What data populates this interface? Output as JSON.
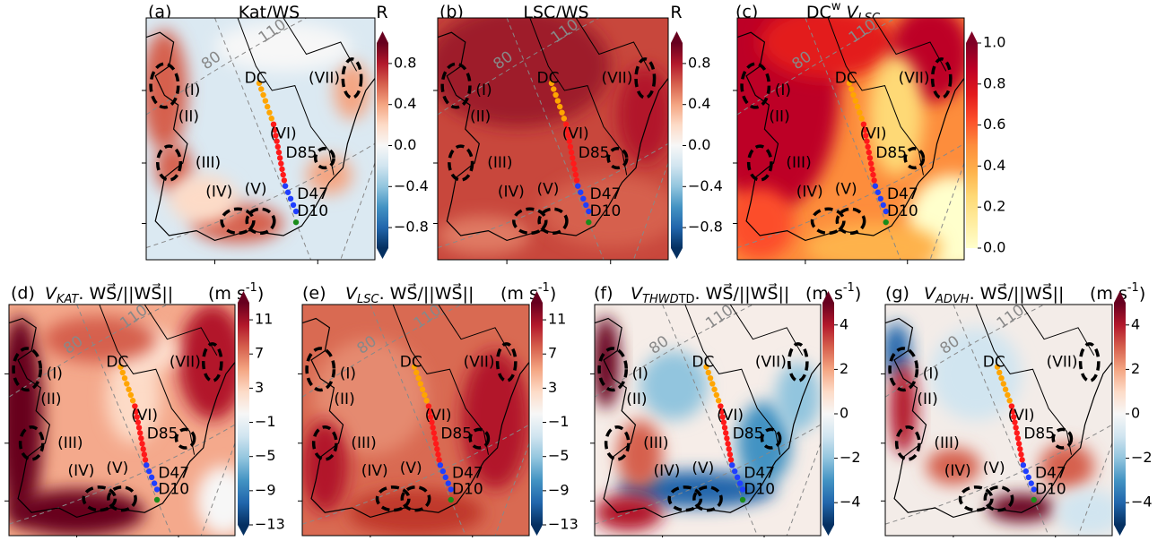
{
  "panels": [
    {
      "label": "(a)",
      "title": [
        {
          "text": "Kat/WS"
        }
      ],
      "unit": [
        {
          "text": "R"
        }
      ],
      "extend": "both",
      "lim": [
        -1,
        1
      ],
      "colors": [
        "#053061",
        "#2166ac",
        "#4393c3",
        "#92c5de",
        "#d1e5f0",
        "#f7f7f7",
        "#fddbc7",
        "#f4a582",
        "#d6604d",
        "#b2182b",
        "#67001f"
      ],
      "ticks": [
        {
          "value": -0.8,
          "label": "−0.8"
        },
        {
          "value": -0.4,
          "label": "−0.4"
        },
        {
          "value": 0,
          "label": "0.0"
        },
        0.4,
        0.8
      ]
    },
    {
      "label": "(b)",
      "title": [
        {
          "text": "LSC/WS"
        }
      ],
      "unit": [
        {
          "text": "R"
        }
      ],
      "extend": "both",
      "lim": [
        -1,
        1
      ],
      "colors": [
        "#053061",
        "#2166ac",
        "#4393c3",
        "#92c5de",
        "#d1e5f0",
        "#f7f7f7",
        "#fddbc7",
        "#f4a582",
        "#d6604d",
        "#b2182b",
        "#67001f"
      ],
      "ticks": [
        {
          "value": -0.8,
          "label": "−0.8"
        },
        {
          "value": -0.4,
          "label": "−0.4"
        },
        {
          "value": 0,
          "label": "0.0"
        },
        0.4,
        0.8
      ]
    },
    {
      "label": "(c)",
      "title": [
        {
          "text": "DC"
        },
        {
          "text": "w",
          "sup": true
        },
        {
          "text": " V",
          "italic": true
        },
        {
          "text": "LSC",
          "sub": true,
          "italic": true
        }
      ],
      "extend": "max",
      "lim": [
        0,
        1
      ],
      "colors": [
        "#ffffcc",
        "#ffeda0",
        "#fed976",
        "#feb24c",
        "#fd8d3c",
        "#fc4e2a",
        "#e31a1c",
        "#bd0026",
        "#800026"
      ],
      "ticks": [
        {
          "value": 0,
          "label": "0.0"
        },
        0.2,
        0.4,
        0.6,
        0.8,
        {
          "value": 1,
          "label": "1.0"
        }
      ]
    },
    {
      "label": "(d)",
      "title": [
        {
          "text": "V",
          "italic": true
        },
        {
          "text": "KAT",
          "sub": true,
          "italic": true
        },
        {
          "text": ". WS⃗/||WS⃗||"
        }
      ],
      "unit": [
        {
          "text": "(m s"
        },
        {
          "text": "-1",
          "sup": true
        },
        {
          "text": ")"
        }
      ],
      "extend": "both",
      "lim": [
        -13,
        13
      ],
      "colors": [
        "#053061",
        "#2166ac",
        "#4393c3",
        "#92c5de",
        "#d1e5f0",
        "#f7f7f7",
        "#fddbc7",
        "#f4a582",
        "#d6604d",
        "#b2182b",
        "#67001f"
      ],
      "ticks": [
        {
          "value": -13,
          "label": "−13"
        },
        {
          "value": -9,
          "label": "−9"
        },
        {
          "value": -5,
          "label": "−5"
        },
        {
          "value": -1,
          "label": "−1"
        },
        3,
        7,
        11
      ]
    },
    {
      "label": "(e)",
      "title": [
        {
          "text": "V",
          "italic": true
        },
        {
          "text": "LSC",
          "sub": true,
          "italic": true
        },
        {
          "text": ". WS⃗/||WS⃗||"
        }
      ],
      "unit": [
        {
          "text": "(m s"
        },
        {
          "text": "-1",
          "sup": true
        },
        {
          "text": ")"
        }
      ],
      "extend": "both",
      "lim": [
        -13,
        13
      ],
      "colors": [
        "#053061",
        "#2166ac",
        "#4393c3",
        "#92c5de",
        "#d1e5f0",
        "#f7f7f7",
        "#fddbc7",
        "#f4a582",
        "#d6604d",
        "#b2182b",
        "#67001f"
      ],
      "ticks": [
        {
          "value": -13,
          "label": "−13"
        },
        {
          "value": -9,
          "label": "−9"
        },
        {
          "value": -5,
          "label": "−5"
        },
        {
          "value": -1,
          "label": "−1"
        },
        3,
        7,
        11
      ]
    },
    {
      "label": "(f)",
      "title": [
        {
          "text": "V",
          "italic": true
        },
        {
          "text": "THWD",
          "sub": true,
          "italic": true
        },
        {
          "text": "TD",
          "sub": true
        },
        {
          "text": ". WS⃗/||WS⃗||"
        }
      ],
      "unit": [
        {
          "text": "(m s"
        },
        {
          "text": "-1",
          "sup": true
        },
        {
          "text": ")"
        }
      ],
      "extend": "both",
      "lim": [
        -5,
        5
      ],
      "colors": [
        "#053061",
        "#2166ac",
        "#4393c3",
        "#92c5de",
        "#d1e5f0",
        "#f7f7f7",
        "#fddbc7",
        "#f4a582",
        "#d6604d",
        "#b2182b",
        "#67001f"
      ],
      "ticks": [
        {
          "value": -4,
          "label": "−4"
        },
        {
          "value": -2,
          "label": "−2"
        },
        0,
        2,
        4
      ]
    },
    {
      "label": "(g)",
      "title": [
        {
          "text": "V",
          "italic": true
        },
        {
          "text": "ADVH",
          "sub": true,
          "italic": true
        },
        {
          "text": ". WS⃗/||WS⃗||"
        }
      ],
      "unit": [
        {
          "text": "(m s"
        },
        {
          "text": "-1",
          "sup": true
        },
        {
          "text": ")"
        }
      ],
      "extend": "both",
      "lim": [
        -5,
        5
      ],
      "colors": [
        "#053061",
        "#2166ac",
        "#4393c3",
        "#92c5de",
        "#d1e5f0",
        "#f7f7f7",
        "#fddbc7",
        "#f4a582",
        "#d6604d",
        "#b2182b",
        "#67001f"
      ],
      "ticks": [
        {
          "value": -4,
          "label": "−4"
        },
        {
          "value": -2,
          "label": "−2"
        },
        0,
        2,
        4
      ]
    }
  ],
  "map_labels": [
    "DC",
    "(VII)",
    "(I)",
    "(II)",
    "(VI)",
    "D85",
    "(III)",
    "(IV)",
    "(V)",
    "D47",
    "D10",
    "80",
    "110"
  ]
}
